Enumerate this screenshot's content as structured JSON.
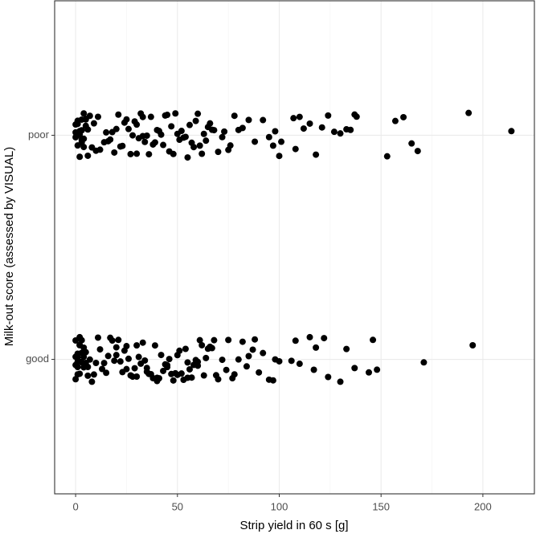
{
  "chart_data": {
    "type": "strip",
    "x_label": "Strip yield in 60 s [g]",
    "y_label": "Milk-out score (assessed by VISUAL)",
    "categories": [
      "good",
      "poor"
    ],
    "values": [
      [
        0,
        0,
        0,
        0,
        1,
        1,
        1,
        1,
        1,
        2,
        2,
        2,
        2,
        2,
        3,
        3,
        3,
        3,
        4,
        4,
        4,
        5,
        5,
        6,
        6,
        7,
        8,
        9,
        10,
        11,
        12,
        13,
        14,
        15,
        16,
        17,
        18,
        19,
        20,
        20,
        21,
        22,
        23,
        24,
        25,
        25,
        26,
        27,
        28,
        29,
        30,
        30,
        31,
        32,
        33,
        34,
        35,
        35,
        36,
        37,
        38,
        39,
        40,
        40,
        41,
        42,
        43,
        44,
        45,
        45,
        46,
        47,
        48,
        49,
        50,
        50,
        51,
        52,
        53,
        54,
        55,
        55,
        56,
        57,
        58,
        59,
        60,
        60,
        61,
        62,
        63,
        64,
        65,
        66,
        67,
        68,
        69,
        70,
        72,
        74,
        75,
        77,
        78,
        80,
        82,
        84,
        85,
        87,
        88,
        90,
        92,
        95,
        97,
        98,
        100,
        106,
        108,
        110,
        115,
        117,
        118,
        122,
        124,
        130,
        133,
        137,
        144,
        146,
        148,
        171,
        195
      ],
      [
        0,
        0,
        0,
        1,
        1,
        1,
        1,
        2,
        2,
        2,
        2,
        3,
        3,
        3,
        3,
        4,
        4,
        4,
        5,
        5,
        5,
        6,
        6,
        7,
        8,
        9,
        10,
        11,
        12,
        14,
        15,
        16,
        17,
        18,
        19,
        20,
        21,
        22,
        23,
        24,
        25,
        26,
        27,
        28,
        29,
        30,
        30,
        31,
        32,
        33,
        33,
        34,
        35,
        36,
        37,
        38,
        39,
        40,
        41,
        42,
        43,
        44,
        45,
        46,
        47,
        48,
        49,
        50,
        51,
        52,
        53,
        54,
        55,
        56,
        57,
        58,
        59,
        60,
        61,
        62,
        63,
        64,
        65,
        66,
        67,
        68,
        70,
        72,
        73,
        75,
        76,
        78,
        80,
        82,
        85,
        88,
        92,
        95,
        97,
        98,
        100,
        101,
        107,
        108,
        110,
        112,
        115,
        118,
        121,
        124,
        127,
        130,
        133,
        135,
        137,
        138,
        153,
        157,
        161,
        165,
        168,
        193,
        214
      ]
    ],
    "color": "#000000",
    "xlim": [
      -10.3,
      225.3
    ],
    "xticks": [
      0,
      50,
      100,
      150,
      200
    ],
    "minor_xticks": [
      25,
      75,
      125,
      175
    ],
    "grid": true
  }
}
